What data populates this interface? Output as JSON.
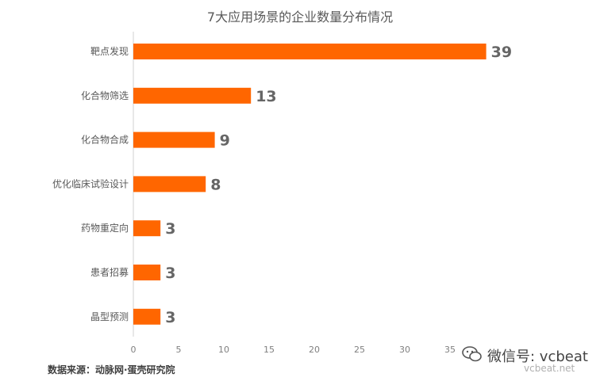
{
  "chart_data": {
    "type": "bar",
    "orientation": "horizontal",
    "title": "7大应用场景的企业数量分布情况",
    "categories": [
      "靶点发现",
      "化合物筛选",
      "化合物合成",
      "优化临床试验设计",
      "药物重定向",
      "患者招募",
      "晶型预测"
    ],
    "values": [
      39,
      13,
      9,
      8,
      3,
      3,
      3
    ],
    "xlim": [
      0,
      40
    ],
    "xticks": [
      0,
      5,
      10,
      15,
      20,
      25,
      30,
      35
    ],
    "grid": false,
    "bar_color": "#ff6600",
    "value_label_color": "#666666"
  },
  "footer": {
    "source": "数据来源：动脉网·蛋壳研究院"
  },
  "watermark": {
    "icon": "wechat-icon",
    "text": "微信号: vcbeat",
    "site": "vcbeat.net"
  }
}
